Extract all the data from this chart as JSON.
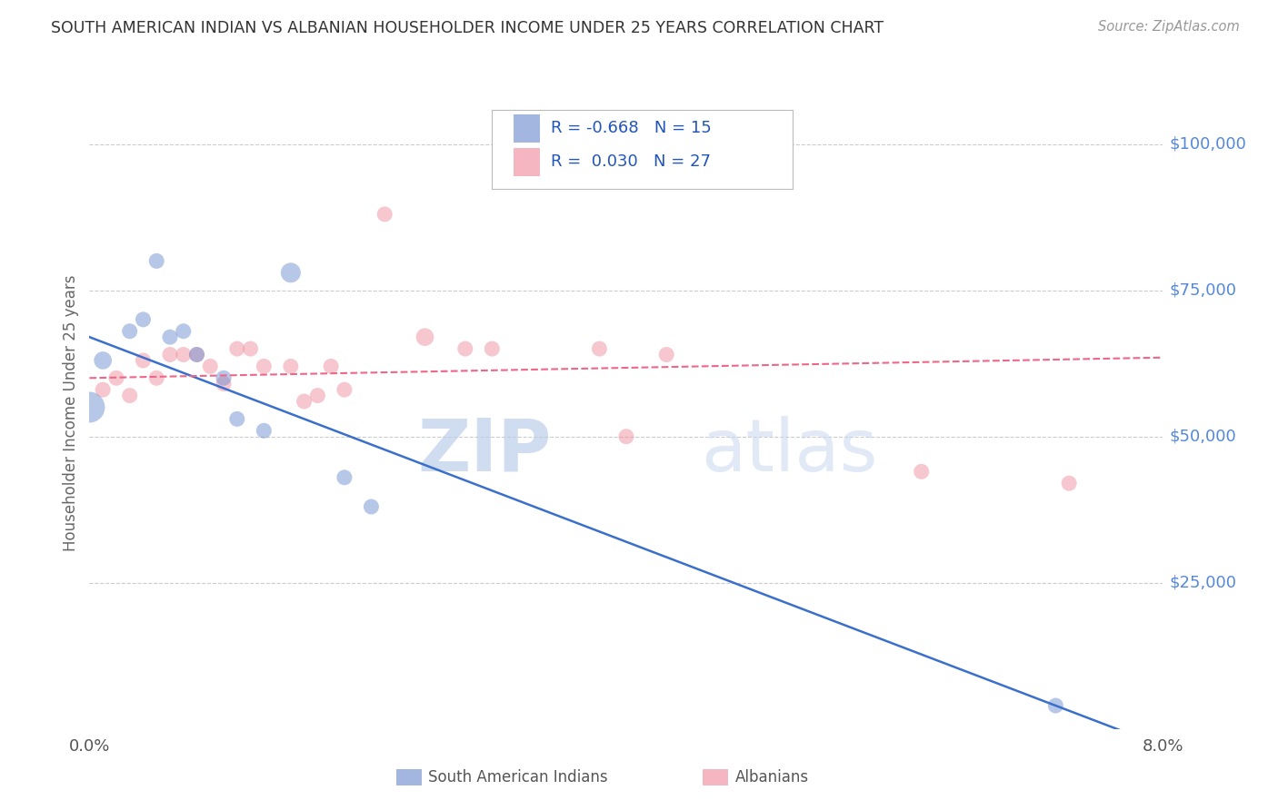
{
  "title": "SOUTH AMERICAN INDIAN VS ALBANIAN HOUSEHOLDER INCOME UNDER 25 YEARS CORRELATION CHART",
  "source": "Source: ZipAtlas.com",
  "ylabel": "Householder Income Under 25 years",
  "ytick_labels": [
    "$25,000",
    "$50,000",
    "$75,000",
    "$100,000"
  ],
  "ytick_values": [
    25000,
    50000,
    75000,
    100000
  ],
  "ylim": [
    0,
    108000
  ],
  "xlim": [
    0.0,
    0.08
  ],
  "blue_R": "-0.668",
  "blue_N": "15",
  "pink_R": "0.030",
  "pink_N": "27",
  "legend_label_blue": "South American Indians",
  "legend_label_pink": "Albanians",
  "watermark_zip": "ZIP",
  "watermark_atlas": "atlas",
  "blue_color": "#7090D0",
  "pink_color": "#F090A0",
  "blue_scatter_x": [
    0.001,
    0.003,
    0.004,
    0.005,
    0.006,
    0.007,
    0.008,
    0.01,
    0.011,
    0.013,
    0.015,
    0.019,
    0.021,
    0.072,
    0.0
  ],
  "blue_scatter_y": [
    63000,
    68000,
    70000,
    80000,
    67000,
    68000,
    64000,
    60000,
    53000,
    51000,
    78000,
    43000,
    38000,
    4000,
    55000
  ],
  "blue_scatter_sizes": [
    200,
    150,
    150,
    150,
    150,
    150,
    150,
    150,
    150,
    150,
    250,
    150,
    150,
    150,
    600
  ],
  "pink_scatter_x": [
    0.001,
    0.002,
    0.003,
    0.004,
    0.005,
    0.006,
    0.007,
    0.008,
    0.009,
    0.01,
    0.011,
    0.012,
    0.013,
    0.015,
    0.016,
    0.017,
    0.018,
    0.019,
    0.022,
    0.025,
    0.028,
    0.03,
    0.038,
    0.04,
    0.043,
    0.062,
    0.073
  ],
  "pink_scatter_y": [
    58000,
    60000,
    57000,
    63000,
    60000,
    64000,
    64000,
    64000,
    62000,
    59000,
    65000,
    65000,
    62000,
    62000,
    56000,
    57000,
    62000,
    58000,
    88000,
    67000,
    65000,
    65000,
    65000,
    50000,
    64000,
    44000,
    42000
  ],
  "pink_scatter_sizes": [
    150,
    150,
    150,
    150,
    150,
    150,
    150,
    150,
    150,
    150,
    150,
    150,
    150,
    150,
    150,
    150,
    150,
    150,
    150,
    200,
    150,
    150,
    150,
    150,
    150,
    150,
    150
  ],
  "blue_line_x": [
    0.0,
    0.08
  ],
  "blue_line_y": [
    67000,
    -3000
  ],
  "pink_line_x": [
    0.0,
    0.08
  ],
  "pink_line_y": [
    60000,
    63500
  ],
  "grid_color": "#CCCCCC",
  "title_color": "#333333",
  "axis_label_color": "#666666",
  "right_tick_color": "#5588DD",
  "background_color": "#FFFFFF"
}
